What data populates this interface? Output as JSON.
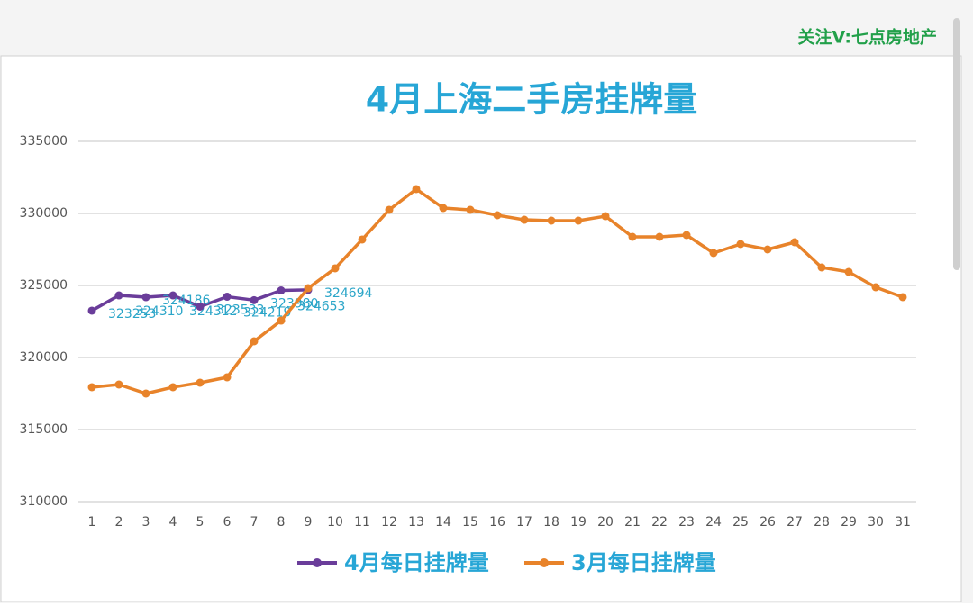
{
  "watermark": "关注V:七点房地产",
  "chart_data": {
    "type": "line",
    "title": "4月上海二手房挂牌量",
    "categories": [
      1,
      2,
      3,
      4,
      5,
      6,
      7,
      8,
      9,
      10,
      11,
      12,
      13,
      14,
      15,
      16,
      17,
      18,
      19,
      20,
      21,
      22,
      23,
      24,
      25,
      26,
      27,
      28,
      29,
      30,
      31
    ],
    "series": [
      {
        "name": "4月每日挂牌量",
        "color": "#6a3d9a",
        "label_color": "#2aa5c8",
        "data_labels": true,
        "values": [
          323253,
          324310,
          324186,
          324312,
          323533,
          324219,
          323980,
          324653,
          324694,
          null,
          null,
          null,
          null,
          null,
          null,
          null,
          null,
          null,
          null,
          null,
          null,
          null,
          null,
          null,
          null,
          null,
          null,
          null,
          null,
          null,
          null
        ]
      },
      {
        "name": "3月每日挂牌量",
        "color": "#e8832a",
        "data_labels": false,
        "values": [
          317940,
          318125,
          317500,
          317940,
          318250,
          318625,
          321125,
          322560,
          324810,
          326190,
          328190,
          330250,
          331690,
          330375,
          330250,
          329875,
          329560,
          329500,
          329500,
          329810,
          328375,
          328375,
          328500,
          327250,
          327875,
          327500,
          328000,
          326250,
          325940,
          324875,
          324190
        ]
      }
    ],
    "ylim": [
      310000,
      335000
    ],
    "yticks": [
      310000,
      315000,
      320000,
      325000,
      330000,
      335000
    ],
    "grid": true,
    "legend": "bottom"
  }
}
